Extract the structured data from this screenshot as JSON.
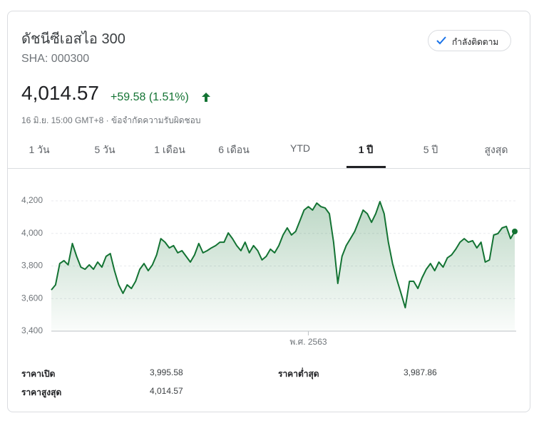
{
  "header": {
    "title": "ดัชนีซีเอสไอ 300",
    "ticker": "SHA: 000300",
    "price": "4,014.57",
    "change": "+59.58 (1.51%)",
    "timestamp": "16 มิ.ย. 15:00 GMT+8 · ข้อจำกัดความรับผิดชอบ",
    "follow_button": "กำลังติดตาม"
  },
  "tabs": [
    "1 วัน",
    "5 วัน",
    "1 เดือน",
    "6 เดือน",
    "YTD",
    "1 ปี",
    "5 ปี",
    "สูงสุด"
  ],
  "selected_tab": 5,
  "chart_data": {
    "type": "line",
    "color": "#137333",
    "grid": true,
    "values": [
      3653,
      3684,
      3815,
      3833,
      3807,
      3938,
      3859,
      3793,
      3780,
      3807,
      3780,
      3824,
      3793,
      3859,
      3876,
      3771,
      3684,
      3632,
      3684,
      3662,
      3706,
      3780,
      3815,
      3771,
      3807,
      3868,
      3968,
      3946,
      3911,
      3925,
      3881,
      3894,
      3859,
      3824,
      3868,
      3938,
      3881,
      3894,
      3911,
      3925,
      3946,
      3946,
      4003,
      3968,
      3925,
      3894,
      3946,
      3881,
      3925,
      3894,
      3837,
      3859,
      3903,
      3881,
      3925,
      3990,
      4034,
      3990,
      4012,
      4077,
      4143,
      4164,
      4143,
      4186,
      4164,
      4156,
      4121,
      3946,
      3693,
      3859,
      3925,
      3968,
      4012,
      4077,
      4143,
      4121,
      4068,
      4121,
      4195,
      4121,
      3946,
      3815,
      3719,
      3632,
      3544,
      3706,
      3706,
      3662,
      3728,
      3780,
      3815,
      3771,
      3824,
      3793,
      3850,
      3868,
      3903,
      3946,
      3968,
      3946,
      3955,
      3911,
      3946,
      3824,
      3837,
      3990,
      3999,
      4034,
      4043,
      3968,
      4012
    ],
    "xlim": [
      0,
      110
    ],
    "xticks": [
      {
        "value": 61,
        "label": "พ.ศ. 2563"
      }
    ],
    "ylim": [
      3400,
      4200
    ],
    "yticks": [
      {
        "value": 3400,
        "label": "3,400"
      },
      {
        "value": 3600,
        "label": "3,600"
      },
      {
        "value": 3800,
        "label": "3,800"
      },
      {
        "value": 4000,
        "label": "4,000"
      },
      {
        "value": 4200,
        "label": "4,200"
      }
    ]
  },
  "stats": [
    {
      "label": "ราคาเปิด",
      "value": "3,995.58"
    },
    {
      "label": "ราคาต่ำสุด",
      "value": "3,987.86"
    },
    {
      "label": "ราคาสูงสุด",
      "value": "4,014.57"
    }
  ]
}
